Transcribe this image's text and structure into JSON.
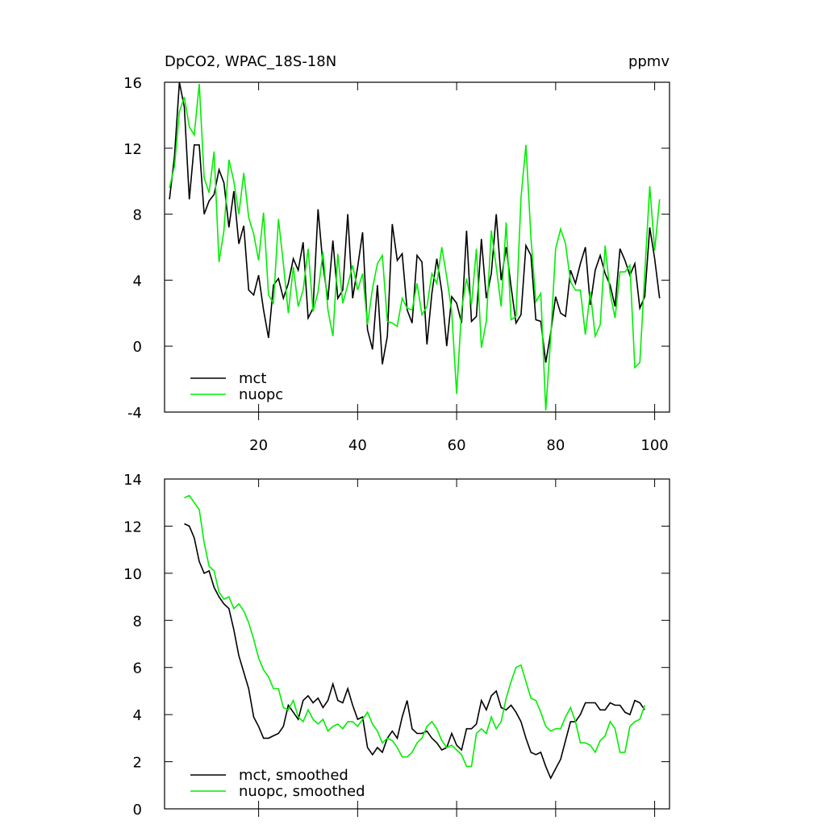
{
  "chart_data": [
    {
      "type": "line",
      "title": "DpCO2, WPAC_18S-18N",
      "subtitle": "ppmv",
      "x": [
        2,
        3,
        4,
        5,
        6,
        7,
        8,
        9,
        10,
        11,
        12,
        13,
        14,
        15,
        16,
        17,
        18,
        19,
        20,
        21,
        22,
        23,
        24,
        25,
        26,
        27,
        28,
        29,
        30,
        31,
        32,
        33,
        34,
        35,
        36,
        37,
        38,
        39,
        40,
        41,
        42,
        43,
        44,
        45,
        46,
        47,
        48,
        49,
        50,
        51,
        52,
        53,
        54,
        55,
        56,
        57,
        58,
        59,
        60,
        61,
        62,
        63,
        64,
        65,
        66,
        67,
        68,
        69,
        70,
        71,
        72,
        73,
        74,
        75,
        76,
        77,
        78,
        79,
        80,
        81,
        82,
        83,
        84,
        85,
        86,
        87,
        88,
        89,
        90,
        91,
        92,
        93,
        94,
        95,
        96,
        97,
        98,
        99,
        100,
        101
      ],
      "series": [
        {
          "name": "mct",
          "color": "#000000",
          "values": [
            8.9,
            11.5,
            16,
            14.5,
            8.9,
            12.2,
            12.2,
            8.0,
            8.8,
            9.2,
            10.7,
            9.9,
            7.2,
            9.4,
            6.2,
            7.3,
            3.4,
            3.1,
            4.3,
            2.2,
            0.5,
            3.7,
            4.1,
            2.9,
            3.8,
            5.3,
            4.6,
            6.3,
            1.7,
            2.3,
            8.3,
            4.9,
            2.8,
            6.4,
            2.9,
            3.4,
            8.0,
            2.9,
            4.8,
            6.9,
            1.0,
            -0.2,
            3.7,
            -1.1,
            0.6,
            7.4,
            5.2,
            5.6,
            2.2,
            1.4,
            5.5,
            5.1,
            0.1,
            3.2,
            5.3,
            3.3,
            0.0,
            3.0,
            2.6,
            1.4,
            7.0,
            1.5,
            1.8,
            6.5,
            2.9,
            4.4,
            8.0,
            4.0,
            6.0,
            3.6,
            1.4,
            1.9,
            6.1,
            5.5,
            1.6,
            1.5,
            -1.0,
            0.8,
            3.0,
            2.0,
            1.8,
            4.6,
            3.8,
            5.0,
            6.0,
            2.5,
            4.6,
            5.5,
            4.4,
            3.7,
            2.4,
            5.9,
            5.2,
            4.3,
            5.0,
            2.3,
            3.0,
            7.2,
            5.3,
            2.9
          ]
        },
        {
          "name": "nuopc",
          "color": "#00ee00",
          "values": [
            9.6,
            10.9,
            14.2,
            15.1,
            13.3,
            12.8,
            15.9,
            10.2,
            9.3,
            11.8,
            5.1,
            7.0,
            11.3,
            10.0,
            8.0,
            10.5,
            7.8,
            6.8,
            5.2,
            8.1,
            3.1,
            2.6,
            7.7,
            5.0,
            2.0,
            4.8,
            2.4,
            3.4,
            5.9,
            2.1,
            3.3,
            5.7,
            2.2,
            0.6,
            5.6,
            2.6,
            3.7,
            4.9,
            3.4,
            4.4,
            1.3,
            3.5,
            5.0,
            5.5,
            1.5,
            1.4,
            1.2,
            2.9,
            2.3,
            2.2,
            3.8,
            1.9,
            2.4,
            4.4,
            3.8,
            6.0,
            4.2,
            2.1,
            -2.9,
            2.2,
            4.1,
            2.5,
            5.9,
            -0.1,
            1.5,
            7.0,
            4.8,
            2.4,
            7.5,
            1.6,
            1.8,
            9.0,
            12.2,
            6.6,
            2.7,
            3.2,
            -3.9,
            0.5,
            5.9,
            7.1,
            6.2,
            3.9,
            3.4,
            3.4,
            0.7,
            3.3,
            0.6,
            1.3,
            6.1,
            3.2,
            1.7,
            4.5,
            4.5,
            4.9,
            -1.3,
            -1.0,
            4.4,
            9.7,
            5.8,
            8.9
          ]
        }
      ],
      "xlim": [
        1,
        103
      ],
      "xticks": [
        20,
        40,
        60,
        80,
        100
      ],
      "ylim": [
        -4,
        16
      ],
      "yticks": [
        -4,
        0,
        4,
        8,
        12,
        16
      ],
      "legend": "lower left"
    },
    {
      "type": "line",
      "x": [
        5,
        6,
        7,
        8,
        9,
        10,
        11,
        12,
        13,
        14,
        15,
        16,
        17,
        18,
        19,
        20,
        21,
        22,
        23,
        24,
        25,
        26,
        27,
        28,
        29,
        30,
        31,
        32,
        33,
        34,
        35,
        36,
        37,
        38,
        39,
        40,
        41,
        42,
        43,
        44,
        45,
        46,
        47,
        48,
        49,
        50,
        51,
        52,
        53,
        54,
        55,
        56,
        57,
        58,
        59,
        60,
        61,
        62,
        63,
        64,
        65,
        66,
        67,
        68,
        69,
        70,
        71,
        72,
        73,
        74,
        75,
        76,
        77,
        78,
        79,
        80,
        81,
        82,
        83,
        84,
        85,
        86,
        87,
        88,
        89,
        90,
        91,
        92,
        93,
        94,
        95,
        96,
        97,
        98
      ],
      "series": [
        {
          "name": "mct, smoothed",
          "color": "#000000",
          "values": [
            12.1,
            12.0,
            11.5,
            10.5,
            10.0,
            10.1,
            9.4,
            9.0,
            8.7,
            8.5,
            7.6,
            6.5,
            5.8,
            5.1,
            3.9,
            3.5,
            3.0,
            3.0,
            3.1,
            3.2,
            3.5,
            4.4,
            4.1,
            3.8,
            4.6,
            4.8,
            4.5,
            4.7,
            4.3,
            4.6,
            5.3,
            4.6,
            4.5,
            5.1,
            4.4,
            3.8,
            3.9,
            2.6,
            2.3,
            2.6,
            2.4,
            3.0,
            3.3,
            3.0,
            3.9,
            4.6,
            3.4,
            3.2,
            3.2,
            3.3,
            3.0,
            2.8,
            2.5,
            2.6,
            3.2,
            2.7,
            2.5,
            3.4,
            3.4,
            3.6,
            4.6,
            4.2,
            4.8,
            5.0,
            4.3,
            4.2,
            4.4,
            4.1,
            3.7,
            3.0,
            2.4,
            2.3,
            2.4,
            1.8,
            1.3,
            1.7,
            2.1,
            2.9,
            3.7,
            3.7,
            4.0,
            4.5,
            4.5,
            4.5,
            4.2,
            4.2,
            4.5,
            4.4,
            4.4,
            4.1,
            4.0,
            4.6,
            4.5,
            4.2
          ]
        },
        {
          "name": "nuopc, smoothed",
          "color": "#00ee00",
          "values": [
            13.2,
            13.3,
            13.0,
            12.7,
            11.3,
            10.3,
            10.1,
            9.2,
            8.9,
            9.0,
            8.5,
            8.7,
            8.4,
            7.9,
            7.2,
            6.4,
            5.9,
            5.6,
            5.1,
            5.1,
            4.3,
            4.2,
            4.6,
            3.9,
            3.7,
            4.2,
            3.8,
            3.6,
            3.8,
            3.3,
            3.5,
            3.6,
            3.4,
            3.7,
            3.7,
            3.5,
            3.8,
            4.1,
            3.6,
            3.3,
            2.8,
            3.0,
            2.9,
            2.6,
            2.2,
            2.2,
            2.4,
            2.8,
            3.0,
            3.5,
            3.7,
            3.4,
            2.9,
            2.6,
            2.7,
            2.5,
            2.3,
            1.8,
            1.8,
            3.2,
            3.4,
            3.2,
            3.9,
            3.4,
            3.7,
            4.7,
            5.4,
            6.0,
            6.1,
            5.4,
            4.7,
            4.6,
            4.1,
            3.5,
            3.3,
            3.4,
            3.4,
            3.9,
            4.3,
            3.7,
            2.8,
            2.8,
            2.7,
            2.4,
            2.9,
            3.1,
            3.7,
            3.4,
            2.4,
            2.4,
            3.5,
            3.7,
            3.8,
            4.4
          ]
        }
      ],
      "xlim": [
        1,
        103
      ],
      "xticks": [
        20,
        40,
        60,
        80,
        100
      ],
      "ylim": [
        0,
        14
      ],
      "yticks": [
        0,
        2,
        4,
        6,
        8,
        10,
        12,
        14
      ],
      "legend": "lower left"
    }
  ]
}
